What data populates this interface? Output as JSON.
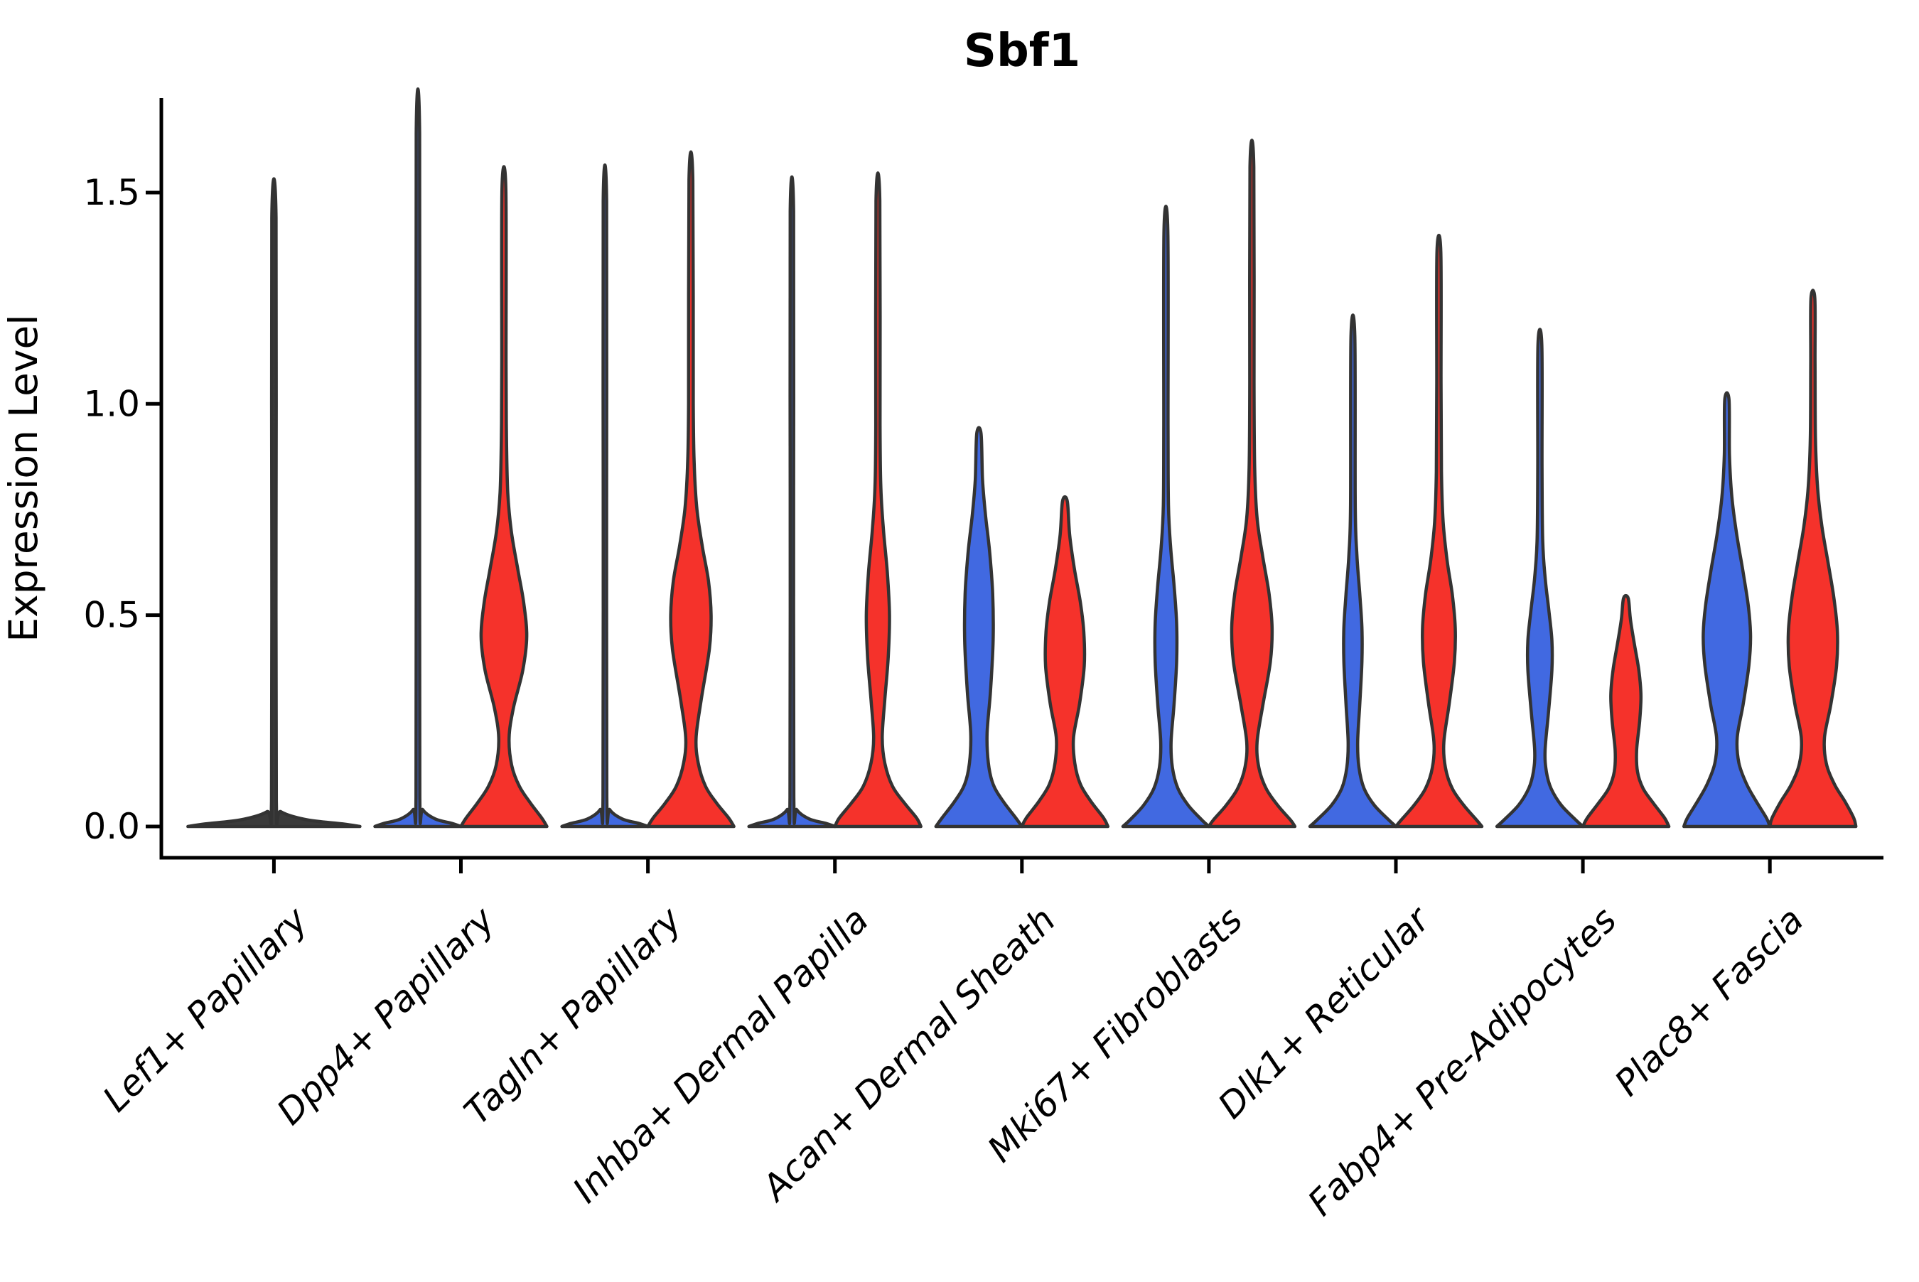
{
  "chart_data": {
    "type": "violin",
    "title": "Sbf1",
    "ylabel": "Expression Level",
    "xlabel": "",
    "ylim": [
      -0.07,
      1.72
    ],
    "grid": false,
    "legend_position": "none",
    "yticks": [
      0,
      0.5,
      1.0,
      1.5
    ],
    "ytick_labels": [
      "0.0",
      "0.5",
      "1.0",
      "1.5"
    ],
    "categories": [
      "Lef1+ Papillary",
      "Dpp4+ Papillary",
      "Tagln+ Papillary",
      "Inhba+ Dermal Papilla",
      "Acan+ Dermal Sheath",
      "Mki67+ Fibroblasts",
      "Dlk1+ Reticular",
      "Fabp4+ Pre-Adipocytes",
      "Plac8+ Fascia"
    ],
    "colors": {
      "group_left": "#4169E1",
      "group_right": "#F5322B",
      "single": "#3A3A3A",
      "edge": "#333333",
      "axis": "#000000"
    },
    "violins": [
      {
        "category": 0,
        "side": "full",
        "color": "single",
        "max": 1.44,
        "profile": [
          [
            0,
            1
          ],
          [
            0.006,
            0.8
          ],
          [
            0.016,
            0.38
          ],
          [
            0.035,
            0.08
          ],
          [
            0.06,
            0.028
          ],
          [
            0.7,
            0.025
          ],
          [
            1.44,
            0.025
          ]
        ]
      },
      {
        "category": 1,
        "side": "left",
        "color": "group_left",
        "max": 1.64,
        "profile": [
          [
            0,
            1
          ],
          [
            0.007,
            0.8
          ],
          [
            0.018,
            0.4
          ],
          [
            0.04,
            0.11
          ],
          [
            0.07,
            0.045
          ],
          [
            0.8,
            0.04
          ],
          [
            1.64,
            0.04
          ]
        ]
      },
      {
        "category": 1,
        "side": "right",
        "color": "group_right",
        "max": 1.51,
        "profile": [
          [
            0,
            1
          ],
          [
            0.02,
            0.88
          ],
          [
            0.055,
            0.62
          ],
          [
            0.095,
            0.36
          ],
          [
            0.145,
            0.18
          ],
          [
            0.21,
            0.12
          ],
          [
            0.28,
            0.22
          ],
          [
            0.37,
            0.44
          ],
          [
            0.45,
            0.53
          ],
          [
            0.53,
            0.46
          ],
          [
            0.61,
            0.32
          ],
          [
            0.7,
            0.17
          ],
          [
            0.79,
            0.09
          ],
          [
            0.92,
            0.06
          ],
          [
            1.1,
            0.05
          ],
          [
            1.51,
            0.045
          ]
        ]
      },
      {
        "category": 2,
        "side": "left",
        "color": "group_left",
        "max": 1.48,
        "profile": [
          [
            0,
            1
          ],
          [
            0.007,
            0.8
          ],
          [
            0.018,
            0.4
          ],
          [
            0.04,
            0.11
          ],
          [
            0.07,
            0.045
          ],
          [
            0.8,
            0.04
          ],
          [
            1.48,
            0.04
          ]
        ]
      },
      {
        "category": 2,
        "side": "right",
        "color": "group_right",
        "max": 1.53,
        "profile": [
          [
            0,
            1
          ],
          [
            0.02,
            0.88
          ],
          [
            0.055,
            0.6
          ],
          [
            0.095,
            0.34
          ],
          [
            0.15,
            0.17
          ],
          [
            0.21,
            0.12
          ],
          [
            0.3,
            0.24
          ],
          [
            0.42,
            0.43
          ],
          [
            0.5,
            0.47
          ],
          [
            0.58,
            0.41
          ],
          [
            0.66,
            0.27
          ],
          [
            0.75,
            0.14
          ],
          [
            0.85,
            0.08
          ],
          [
            1.0,
            0.055
          ],
          [
            1.53,
            0.045
          ]
        ]
      },
      {
        "category": 3,
        "side": "left",
        "color": "group_left",
        "max": 1.455,
        "profile": [
          [
            0,
            1
          ],
          [
            0.007,
            0.8
          ],
          [
            0.018,
            0.4
          ],
          [
            0.04,
            0.11
          ],
          [
            0.07,
            0.045
          ],
          [
            0.8,
            0.04
          ],
          [
            1.455,
            0.04
          ]
        ]
      },
      {
        "category": 3,
        "side": "right",
        "color": "group_right",
        "max": 1.48,
        "profile": [
          [
            0,
            1
          ],
          [
            0.02,
            0.9
          ],
          [
            0.055,
            0.62
          ],
          [
            0.095,
            0.34
          ],
          [
            0.15,
            0.16
          ],
          [
            0.21,
            0.1
          ],
          [
            0.3,
            0.16
          ],
          [
            0.4,
            0.24
          ],
          [
            0.5,
            0.27
          ],
          [
            0.6,
            0.22
          ],
          [
            0.7,
            0.13
          ],
          [
            0.8,
            0.07
          ],
          [
            0.95,
            0.05
          ],
          [
            1.48,
            0.045
          ]
        ]
      },
      {
        "category": 4,
        "side": "left",
        "color": "group_left",
        "max": 0.93,
        "profile": [
          [
            0,
            1
          ],
          [
            0.02,
            0.86
          ],
          [
            0.06,
            0.56
          ],
          [
            0.1,
            0.33
          ],
          [
            0.15,
            0.22
          ],
          [
            0.22,
            0.19
          ],
          [
            0.32,
            0.27
          ],
          [
            0.44,
            0.33
          ],
          [
            0.55,
            0.32
          ],
          [
            0.65,
            0.25
          ],
          [
            0.74,
            0.15
          ],
          [
            0.82,
            0.085
          ],
          [
            0.93,
            0.05
          ]
        ]
      },
      {
        "category": 4,
        "side": "right",
        "color": "group_right",
        "max": 0.77,
        "profile": [
          [
            0,
            1
          ],
          [
            0.02,
            0.9
          ],
          [
            0.06,
            0.6
          ],
          [
            0.1,
            0.36
          ],
          [
            0.15,
            0.23
          ],
          [
            0.21,
            0.2
          ],
          [
            0.29,
            0.34
          ],
          [
            0.38,
            0.45
          ],
          [
            0.46,
            0.44
          ],
          [
            0.53,
            0.36
          ],
          [
            0.61,
            0.22
          ],
          [
            0.69,
            0.11
          ],
          [
            0.77,
            0.055
          ]
        ]
      },
      {
        "category": 5,
        "side": "left",
        "color": "group_left",
        "max": 1.41,
        "profile": [
          [
            0,
            1
          ],
          [
            0.015,
            0.84
          ],
          [
            0.05,
            0.52
          ],
          [
            0.09,
            0.28
          ],
          [
            0.14,
            0.15
          ],
          [
            0.2,
            0.12
          ],
          [
            0.29,
            0.19
          ],
          [
            0.39,
            0.25
          ],
          [
            0.48,
            0.25
          ],
          [
            0.57,
            0.19
          ],
          [
            0.66,
            0.11
          ],
          [
            0.76,
            0.06
          ],
          [
            0.95,
            0.05
          ],
          [
            1.41,
            0.045
          ]
        ]
      },
      {
        "category": 5,
        "side": "right",
        "color": "group_right",
        "max": 1.56,
        "profile": [
          [
            0,
            1
          ],
          [
            0.015,
            0.9
          ],
          [
            0.05,
            0.6
          ],
          [
            0.09,
            0.33
          ],
          [
            0.14,
            0.16
          ],
          [
            0.2,
            0.12
          ],
          [
            0.29,
            0.26
          ],
          [
            0.39,
            0.43
          ],
          [
            0.47,
            0.47
          ],
          [
            0.55,
            0.4
          ],
          [
            0.64,
            0.25
          ],
          [
            0.73,
            0.12
          ],
          [
            0.85,
            0.065
          ],
          [
            1.05,
            0.05
          ],
          [
            1.56,
            0.045
          ]
        ]
      },
      {
        "category": 6,
        "side": "left",
        "color": "group_left",
        "max": 1.16,
        "profile": [
          [
            0,
            1
          ],
          [
            0.015,
            0.84
          ],
          [
            0.05,
            0.5
          ],
          [
            0.09,
            0.26
          ],
          [
            0.14,
            0.14
          ],
          [
            0.2,
            0.11
          ],
          [
            0.29,
            0.16
          ],
          [
            0.39,
            0.21
          ],
          [
            0.47,
            0.21
          ],
          [
            0.55,
            0.16
          ],
          [
            0.64,
            0.095
          ],
          [
            0.76,
            0.055
          ],
          [
            1.16,
            0.045
          ]
        ]
      },
      {
        "category": 6,
        "side": "right",
        "color": "group_right",
        "max": 1.36,
        "profile": [
          [
            0,
            1
          ],
          [
            0.015,
            0.88
          ],
          [
            0.05,
            0.58
          ],
          [
            0.09,
            0.31
          ],
          [
            0.14,
            0.15
          ],
          [
            0.2,
            0.115
          ],
          [
            0.29,
            0.24
          ],
          [
            0.39,
            0.36
          ],
          [
            0.47,
            0.38
          ],
          [
            0.55,
            0.31
          ],
          [
            0.63,
            0.19
          ],
          [
            0.72,
            0.1
          ],
          [
            0.84,
            0.06
          ],
          [
            1.05,
            0.05
          ],
          [
            1.36,
            0.045
          ]
        ]
      },
      {
        "category": 7,
        "side": "left",
        "color": "group_left",
        "max": 1.14,
        "profile": [
          [
            0,
            1
          ],
          [
            0.015,
            0.84
          ],
          [
            0.05,
            0.5
          ],
          [
            0.09,
            0.26
          ],
          [
            0.13,
            0.15
          ],
          [
            0.18,
            0.12
          ],
          [
            0.27,
            0.2
          ],
          [
            0.37,
            0.28
          ],
          [
            0.44,
            0.28
          ],
          [
            0.51,
            0.21
          ],
          [
            0.59,
            0.12
          ],
          [
            0.68,
            0.065
          ],
          [
            0.85,
            0.05
          ],
          [
            1.14,
            0.045
          ]
        ]
      },
      {
        "category": 7,
        "side": "right",
        "color": "group_right",
        "max": 0.54,
        "profile": [
          [
            0,
            1
          ],
          [
            0.02,
            0.9
          ],
          [
            0.055,
            0.64
          ],
          [
            0.09,
            0.4
          ],
          [
            0.13,
            0.27
          ],
          [
            0.18,
            0.25
          ],
          [
            0.25,
            0.32
          ],
          [
            0.31,
            0.35
          ],
          [
            0.37,
            0.3
          ],
          [
            0.43,
            0.2
          ],
          [
            0.49,
            0.105
          ],
          [
            0.54,
            0.055
          ]
        ]
      },
      {
        "category": 8,
        "side": "left",
        "color": "group_left",
        "max": 1.01,
        "profile": [
          [
            0,
            1
          ],
          [
            0.02,
            0.92
          ],
          [
            0.06,
            0.68
          ],
          [
            0.1,
            0.46
          ],
          [
            0.15,
            0.28
          ],
          [
            0.21,
            0.24
          ],
          [
            0.29,
            0.38
          ],
          [
            0.38,
            0.51
          ],
          [
            0.45,
            0.55
          ],
          [
            0.52,
            0.5
          ],
          [
            0.6,
            0.38
          ],
          [
            0.69,
            0.23
          ],
          [
            0.78,
            0.115
          ],
          [
            0.88,
            0.06
          ],
          [
            1.01,
            0.05
          ]
        ]
      },
      {
        "category": 8,
        "side": "right",
        "color": "group_right",
        "max": 1.25,
        "profile": [
          [
            0,
            1
          ],
          [
            0.02,
            0.95
          ],
          [
            0.06,
            0.74
          ],
          [
            0.1,
            0.5
          ],
          [
            0.15,
            0.31
          ],
          [
            0.21,
            0.27
          ],
          [
            0.29,
            0.42
          ],
          [
            0.38,
            0.55
          ],
          [
            0.46,
            0.57
          ],
          [
            0.54,
            0.49
          ],
          [
            0.62,
            0.36
          ],
          [
            0.71,
            0.21
          ],
          [
            0.8,
            0.11
          ],
          [
            0.92,
            0.06
          ],
          [
            1.1,
            0.05
          ],
          [
            1.25,
            0.045
          ]
        ]
      }
    ]
  }
}
